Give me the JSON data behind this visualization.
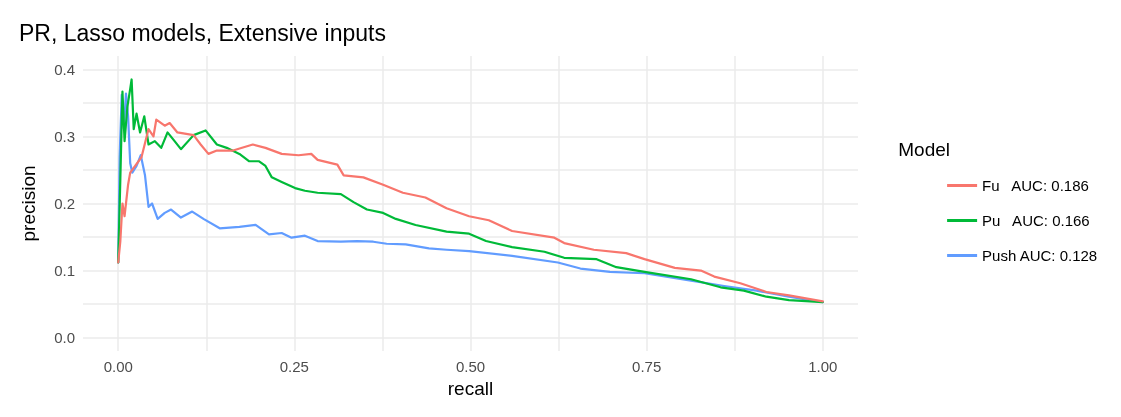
{
  "chart_data": {
    "type": "line",
    "title": "PR, Lasso models, Extensive inputs",
    "xlabel": "recall",
    "ylabel": "precision",
    "legend_title": "Model",
    "legend": "right",
    "grid": true,
    "marker": "none",
    "line_style": "solid",
    "xlim": [
      -0.05,
      1.05
    ],
    "ylim": [
      -0.02,
      0.42
    ],
    "xticks": [
      {
        "value": 0,
        "label": "0.00"
      },
      {
        "value": 0.125,
        "label": null
      },
      {
        "value": 0.25,
        "label": "0.25"
      },
      {
        "value": 0.375,
        "label": null
      },
      {
        "value": 0.5,
        "label": "0.50"
      },
      {
        "value": 0.625,
        "label": null
      },
      {
        "value": 0.75,
        "label": "0.75"
      },
      {
        "value": 0.875,
        "label": null
      },
      {
        "value": 1,
        "label": "1.00"
      }
    ],
    "yticks": [
      {
        "value": 0,
        "label": "0.0"
      },
      {
        "value": 0.05,
        "label": null
      },
      0.1,
      {
        "value": 0.15,
        "label": null
      },
      0.2,
      {
        "value": 0.25,
        "label": null
      },
      0.3,
      {
        "value": 0.35,
        "label": null
      },
      0.4
    ],
    "series": [
      {
        "name": "Fu   AUC: 0.186",
        "color": "#f8766d",
        "x": [
          0,
          0.003,
          0.006,
          0.009,
          0.014,
          0.017,
          0.024,
          0.033,
          0.043,
          0.05,
          0.054,
          0.066,
          0.073,
          0.084,
          0.107,
          0.117,
          0.128,
          0.14,
          0.163,
          0.191,
          0.209,
          0.232,
          0.256,
          0.274,
          0.283,
          0.311,
          0.32,
          0.348,
          0.376,
          0.404,
          0.436,
          0.466,
          0.498,
          0.526,
          0.559,
          0.619,
          0.633,
          0.675,
          0.721,
          0.747,
          0.79,
          0.827,
          0.846,
          0.883,
          0.92,
          0.952,
          1
        ],
        "values": [
          0.112,
          0.144,
          0.2,
          0.181,
          0.228,
          0.246,
          0.256,
          0.269,
          0.311,
          0.3,
          0.325,
          0.316,
          0.32,
          0.306,
          0.302,
          0.288,
          0.274,
          0.279,
          0.279,
          0.288,
          0.283,
          0.274,
          0.272,
          0.274,
          0.265,
          0.258,
          0.242,
          0.239,
          0.228,
          0.216,
          0.209,
          0.193,
          0.181,
          0.175,
          0.159,
          0.149,
          0.141,
          0.131,
          0.126,
          0.117,
          0.104,
          0.1,
          0.091,
          0.081,
          0.068,
          0.063,
          0.054
        ]
      },
      {
        "name": "Pu   AUC: 0.166",
        "color": "#00ba38",
        "x": [
          0,
          0.003,
          0.006,
          0.009,
          0.013,
          0.017,
          0.019,
          0.022,
          0.026,
          0.031,
          0.037,
          0.043,
          0.052,
          0.061,
          0.07,
          0.08,
          0.089,
          0.107,
          0.124,
          0.14,
          0.154,
          0.172,
          0.186,
          0.2,
          0.209,
          0.218,
          0.232,
          0.251,
          0.265,
          0.283,
          0.316,
          0.334,
          0.353,
          0.376,
          0.394,
          0.422,
          0.466,
          0.498,
          0.522,
          0.559,
          0.605,
          0.633,
          0.679,
          0.707,
          0.747,
          0.813,
          0.855,
          0.888,
          0.92,
          0.952,
          1
        ],
        "values": [
          0.112,
          0.237,
          0.367,
          0.293,
          0.344,
          0.371,
          0.385,
          0.311,
          0.334,
          0.306,
          0.33,
          0.288,
          0.293,
          0.283,
          0.306,
          0.293,
          0.281,
          0.302,
          0.309,
          0.288,
          0.283,
          0.274,
          0.263,
          0.263,
          0.256,
          0.239,
          0.232,
          0.223,
          0.219,
          0.216,
          0.214,
          0.202,
          0.191,
          0.186,
          0.177,
          0.168,
          0.158,
          0.155,
          0.144,
          0.135,
          0.128,
          0.119,
          0.117,
          0.105,
          0.098,
          0.087,
          0.075,
          0.07,
          0.061,
          0.056,
          0.053
        ]
      },
      {
        "name": "Push AUC: 0.128",
        "color": "#619cff",
        "x": [
          0,
          0.002,
          0.005,
          0.008,
          0.011,
          0.014,
          0.017,
          0.02,
          0.026,
          0.032,
          0.038,
          0.043,
          0.048,
          0.056,
          0.066,
          0.075,
          0.089,
          0.105,
          0.121,
          0.144,
          0.172,
          0.195,
          0.214,
          0.232,
          0.246,
          0.265,
          0.283,
          0.316,
          0.339,
          0.362,
          0.381,
          0.408,
          0.441,
          0.466,
          0.498,
          0.559,
          0.624,
          0.656,
          0.698,
          0.747,
          0.813,
          0.86,
          0.906,
          0.952,
          1
        ],
        "values": [
          0.112,
          0.269,
          0.362,
          0.311,
          0.364,
          0.33,
          0.26,
          0.246,
          0.256,
          0.272,
          0.242,
          0.195,
          0.2,
          0.177,
          0.186,
          0.191,
          0.179,
          0.188,
          0.177,
          0.163,
          0.165,
          0.168,
          0.154,
          0.156,
          0.149,
          0.152,
          0.144,
          0.143,
          0.144,
          0.143,
          0.14,
          0.139,
          0.133,
          0.131,
          0.129,
          0.122,
          0.112,
          0.103,
          0.098,
          0.096,
          0.085,
          0.077,
          0.07,
          0.061,
          0.053
        ]
      }
    ]
  }
}
